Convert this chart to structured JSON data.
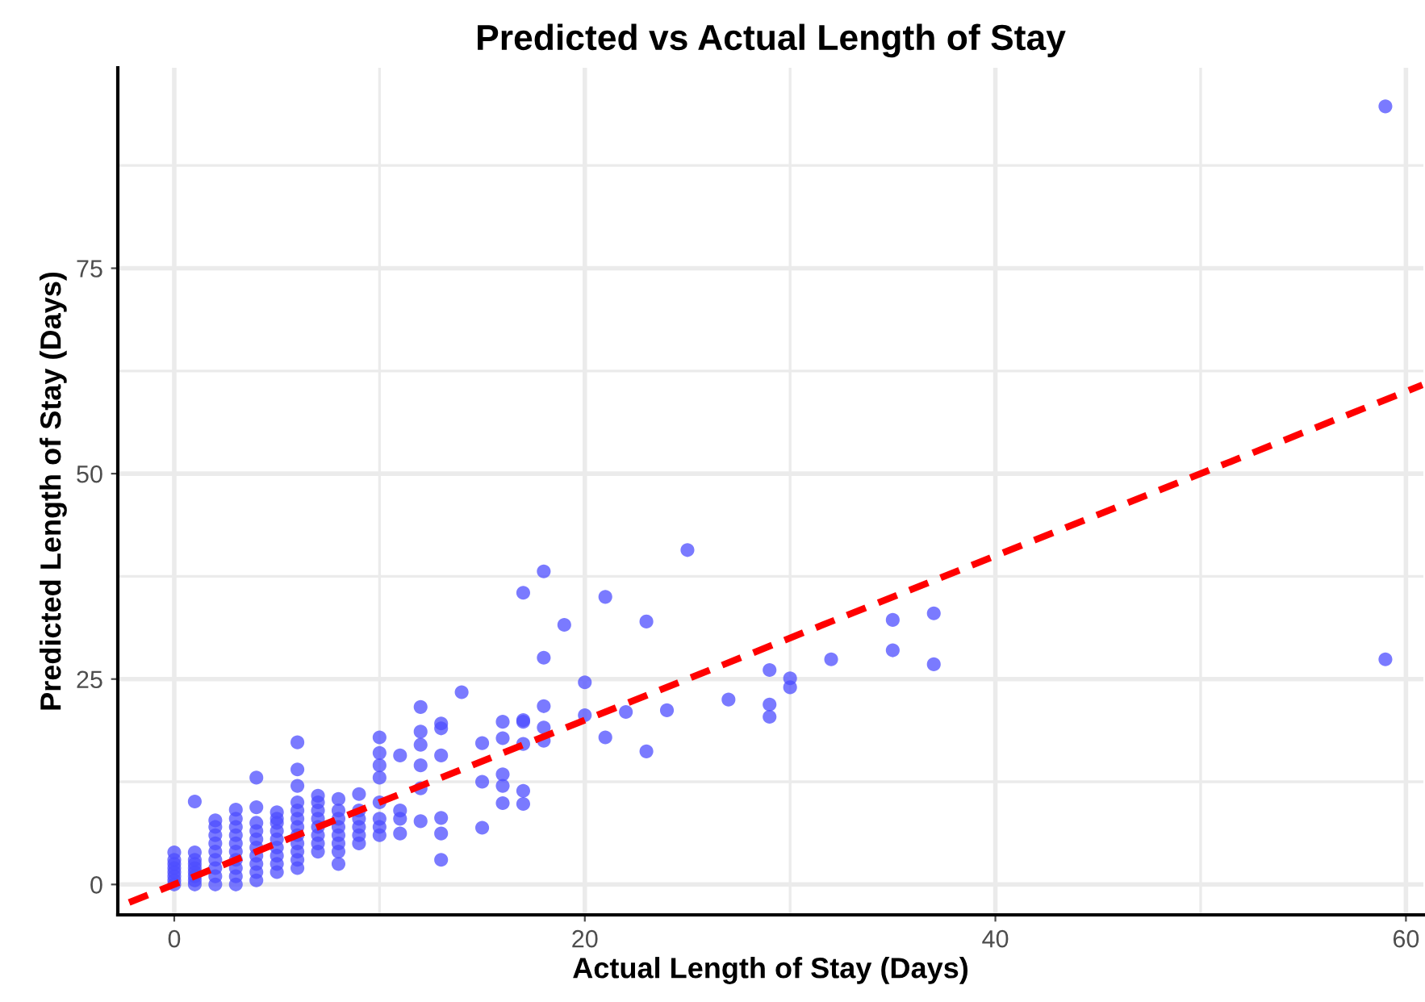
{
  "chart_data": {
    "type": "scatter",
    "title": "Predicted vs Actual Length of Stay",
    "xlabel": "Actual Length of Stay (Days)",
    "ylabel": "Predicted Length of Stay (Days)",
    "xlim": [
      -2.75,
      60.85
    ],
    "ylim": [
      -3.7,
      99.4
    ],
    "xticks": [
      0,
      20,
      40,
      60
    ],
    "yticks": [
      0,
      25,
      50,
      75
    ],
    "grid": true,
    "series": [
      {
        "color": "#4d4dff",
        "marker": "circle",
        "x": [
          0,
          0,
          0,
          0,
          0,
          0,
          0,
          0,
          1,
          1,
          1,
          1,
          1,
          1,
          1,
          1,
          1,
          2,
          2,
          2,
          2,
          2,
          2,
          2,
          2,
          2,
          3,
          3,
          3,
          3,
          3,
          3,
          3,
          3,
          3,
          3,
          4,
          4,
          4,
          4,
          4,
          4,
          4,
          4,
          4,
          4,
          5,
          5,
          5,
          5,
          5,
          5,
          5,
          5,
          5,
          6,
          6,
          6,
          6,
          6,
          6,
          6,
          6,
          6,
          6,
          6,
          6,
          7,
          7,
          7,
          7,
          7,
          7,
          7,
          7,
          8,
          8,
          8,
          8,
          8,
          8,
          8,
          8,
          9,
          9,
          9,
          9,
          9,
          9,
          10,
          10,
          10,
          10,
          10,
          10,
          10,
          10,
          11,
          11,
          11,
          11,
          12,
          12,
          12,
          12,
          12,
          12,
          13,
          13,
          13,
          13,
          13,
          13,
          14,
          15,
          15,
          15,
          16,
          16,
          16,
          16,
          16,
          17,
          17,
          17,
          17,
          17,
          17,
          18,
          18,
          18,
          18,
          18,
          19,
          20,
          20,
          21,
          21,
          22,
          23,
          23,
          24,
          25,
          27,
          29,
          29,
          29,
          30,
          30,
          32,
          35,
          35,
          37,
          37,
          59,
          59
        ],
        "values": [
          0,
          0.5,
          1,
          1.5,
          2,
          2.5,
          3,
          3.9,
          0,
          0.5,
          1,
          1.5,
          2,
          2.5,
          3,
          3.9,
          10.1,
          0,
          1,
          2,
          3,
          4,
          5,
          6,
          7,
          7.8,
          0,
          1,
          2,
          3,
          4,
          5,
          6,
          7,
          8,
          9.1,
          0.5,
          1.5,
          2.5,
          3.5,
          4.5,
          5.5,
          6.5,
          7.5,
          9.4,
          13,
          1.5,
          2.5,
          3.5,
          4.5,
          5.5,
          6.5,
          7.5,
          8.8,
          8,
          2,
          3,
          4,
          5,
          6,
          7,
          8,
          9,
          10,
          12,
          14,
          17.3,
          4,
          5,
          6,
          7,
          8,
          9,
          10,
          10.8,
          2.5,
          4,
          5,
          6,
          7,
          8,
          9,
          10.4,
          5,
          6,
          7,
          8,
          9,
          11,
          6,
          7,
          8,
          10,
          13,
          14.5,
          16,
          17.9,
          6.2,
          8,
          9,
          15.7,
          7.7,
          11.7,
          17,
          18.6,
          21.6,
          14.5,
          3,
          6.2,
          8.1,
          15.7,
          19.6,
          19,
          23.4,
          6.9,
          12.5,
          17.2,
          9.9,
          12,
          13.4,
          17.8,
          19.8,
          9.8,
          11.4,
          17.1,
          19.8,
          35.5,
          20,
          17.5,
          19.1,
          21.7,
          27.6,
          38.1,
          31.6,
          20.6,
          24.6,
          17.9,
          35,
          21,
          16.2,
          32,
          21.2,
          40.7,
          22.5,
          20.4,
          21.9,
          26.1,
          24,
          25.1,
          27.4,
          28.5,
          32.2,
          26.8,
          33,
          27.4,
          94.7
        ]
      },
      {
        "type": "line",
        "color": "#ff0000",
        "line_style": "dashed",
        "x": [
          -2.2,
          60.8
        ],
        "values": [
          -2.2,
          60.8
        ]
      }
    ]
  }
}
